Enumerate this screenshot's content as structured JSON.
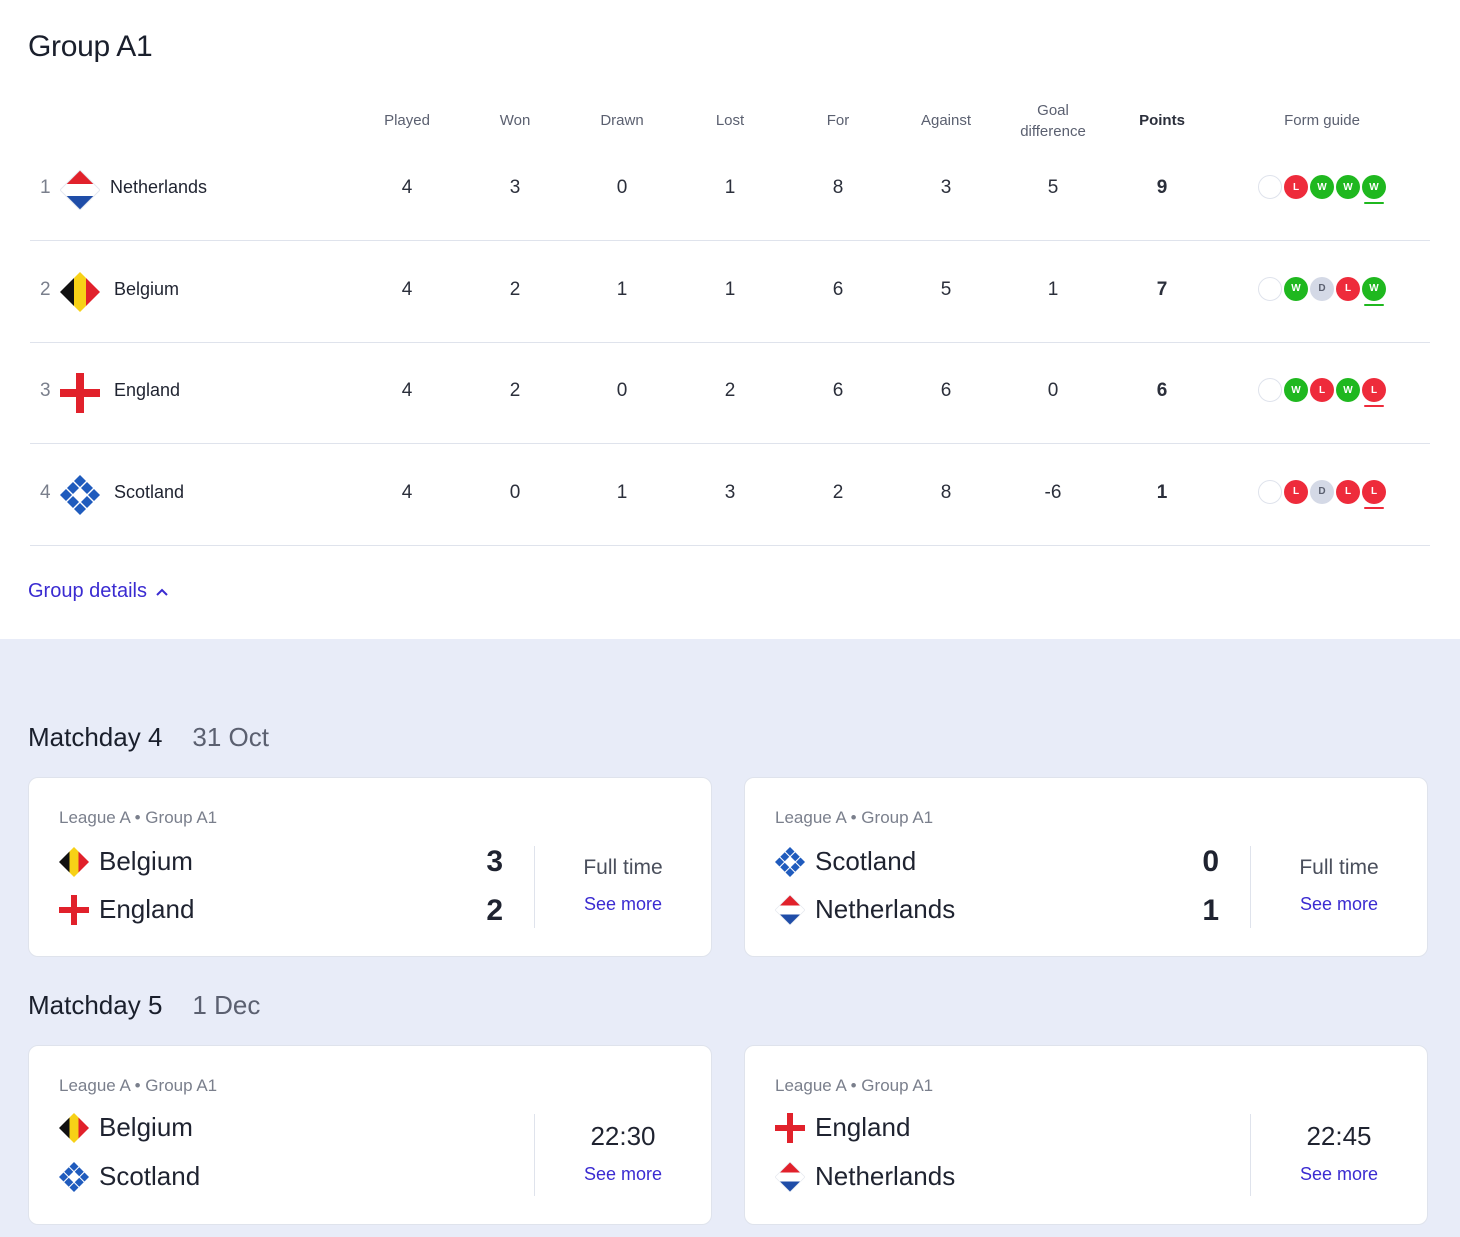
{
  "group": {
    "title": "Group A1",
    "columns": {
      "played": "Played",
      "won": "Won",
      "drawn": "Drawn",
      "lost": "Lost",
      "for": "For",
      "against": "Against",
      "gd_line1": "Goal",
      "gd_line2": "difference",
      "points": "Points",
      "form": "Form guide"
    },
    "rows": [
      {
        "pos": "1",
        "team": "Netherlands",
        "flag": "netherlands-flag-icon",
        "played": "4",
        "won": "3",
        "drawn": "0",
        "lost": "1",
        "for": "8",
        "against": "3",
        "gd": "5",
        "points": "9",
        "form": [
          "L",
          "W",
          "W",
          "W"
        ]
      },
      {
        "pos": "2",
        "team": "Belgium",
        "flag": "belgium-flag-icon",
        "played": "4",
        "won": "2",
        "drawn": "1",
        "lost": "1",
        "for": "6",
        "against": "5",
        "gd": "1",
        "points": "7",
        "form": [
          "W",
          "D",
          "L",
          "W"
        ]
      },
      {
        "pos": "3",
        "team": "England",
        "flag": "england-flag-icon",
        "played": "4",
        "won": "2",
        "drawn": "0",
        "lost": "2",
        "for": "6",
        "against": "6",
        "gd": "0",
        "points": "6",
        "form": [
          "W",
          "L",
          "W",
          "L"
        ]
      },
      {
        "pos": "4",
        "team": "Scotland",
        "flag": "scotland-flag-icon",
        "played": "4",
        "won": "0",
        "drawn": "1",
        "lost": "3",
        "for": "2",
        "against": "8",
        "gd": "-6",
        "points": "1",
        "form": [
          "L",
          "D",
          "L",
          "L"
        ]
      }
    ],
    "details_label": "Group details"
  },
  "matchdays": [
    {
      "label": "Matchday 4",
      "date": "31 Oct",
      "matches": [
        {
          "meta": "League A • Group A1",
          "home": "Belgium",
          "away": "England",
          "home_score": "3",
          "away_score": "2",
          "status": "Full time",
          "more": "See more"
        },
        {
          "meta": "League A • Group A1",
          "home": "Scotland",
          "away": "Netherlands",
          "home_score": "0",
          "away_score": "1",
          "status": "Full time",
          "more": "See more"
        }
      ]
    },
    {
      "label": "Matchday 5",
      "date": "1 Dec",
      "matches": [
        {
          "meta": "League A • Group A1",
          "home": "Belgium",
          "away": "Scotland",
          "status": "22:30",
          "more": "See more"
        },
        {
          "meta": "League A • Group A1",
          "home": "England",
          "away": "Netherlands",
          "status": "22:45",
          "more": "See more"
        }
      ]
    }
  ],
  "colors": {
    "win": "#1fb81f",
    "loss": "#ee2b3b",
    "draw": "#d4d9e6",
    "link": "#3a2bd1",
    "background": "#e8ecf8"
  }
}
